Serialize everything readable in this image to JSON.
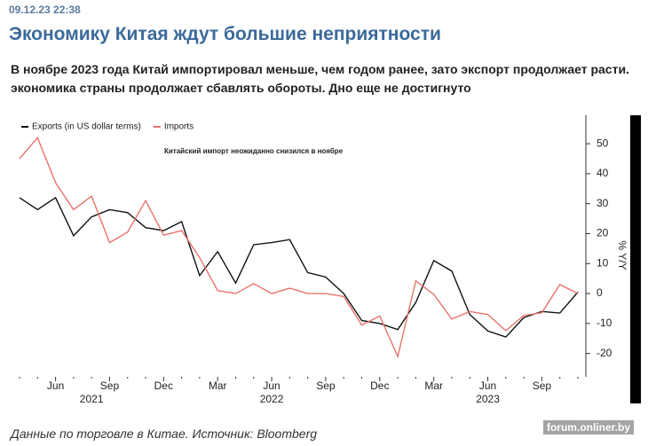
{
  "timestamp": "09.12.23 22:38",
  "headline": "Экономику Китая ждут большие неприятности",
  "paragraph": [
    "В ноябре 2023 года Китай импортировал меньше, чем годом ранее, зато экспорт продолжает расти.",
    "экономика страны продолжает сбавлять обороты. Дно еще не достигнуто"
  ],
  "caption": "Данные по торговле в Китае. Источник: Bloomberg",
  "watermark": "forum.onliner.by",
  "chart_data": {
    "type": "line",
    "title": "Китайский импорт неожиданно снизился в ноябре",
    "y_label": "% Y/Y",
    "categories": [
      null,
      null,
      "Jun",
      null,
      null,
      "Sep",
      null,
      null,
      "Dec",
      null,
      null,
      "Mar",
      null,
      null,
      "Jun",
      null,
      null,
      "Sep",
      null,
      null,
      "Dec",
      null,
      null,
      "Mar",
      null,
      null,
      "Jun",
      null,
      null,
      "Sep",
      null,
      null
    ],
    "category_years": [
      null,
      null,
      null,
      null,
      "2021",
      null,
      null,
      null,
      null,
      null,
      null,
      null,
      null,
      null,
      "2022",
      null,
      null,
      null,
      null,
      null,
      null,
      null,
      null,
      null,
      null,
      null,
      "2023",
      null,
      null,
      null,
      null,
      null
    ],
    "series": [
      {
        "name": "Exports (in US dollar terms)",
        "color": "#111111",
        "values": [
          32,
          28,
          32,
          19.3,
          25.6,
          28,
          27,
          22,
          21,
          24,
          6,
          14,
          3.5,
          16.3,
          17,
          18,
          7,
          5.5,
          0,
          -9,
          -10,
          -12,
          -3,
          11,
          7.5,
          -7,
          -12.5,
          -14.5,
          -8,
          -6,
          -6.5,
          0.5
        ]
      },
      {
        "name": "Imports",
        "color": "#e8736c",
        "values": [
          45,
          52,
          37,
          28,
          32.5,
          17,
          20.5,
          31,
          19.5,
          21,
          12,
          1,
          0,
          3.3,
          0,
          1.8,
          0,
          0,
          -1,
          -10.5,
          -7.5,
          -21,
          4.2,
          -0.3,
          -8.5,
          -6,
          -7,
          -12.4,
          -7.3,
          -6.4,
          3,
          0
        ]
      }
    ],
    "ylim": [
      -27.8,
      59.5
    ],
    "yticks": [
      -20,
      -10,
      0,
      10,
      20,
      30,
      40,
      50
    ],
    "y_axis_side": "right",
    "grid": false,
    "legend": "top-left"
  }
}
